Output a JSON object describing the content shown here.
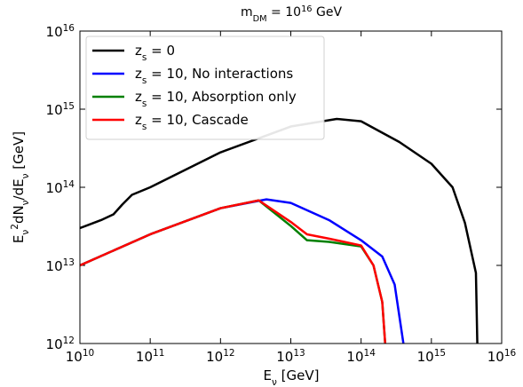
{
  "chart_data": {
    "type": "line",
    "title": "m_{DM} = 10^{16} GeV",
    "x_label": "E_{ν} [GeV]",
    "y_label": "E_{ν}^{2}dN_{ν}/dE_{ν} [GeV]",
    "xscale": "log",
    "yscale": "log",
    "xlim": [
      10000000000.0,
      1e+16
    ],
    "ylim": [
      1000000000000.0,
      1e+16
    ],
    "xticks": [
      {
        "value": 10000000000.0,
        "label": "10^{10}"
      },
      {
        "value": 100000000000.0,
        "label": "10^{11}"
      },
      {
        "value": 1000000000000.0,
        "label": "10^{12}"
      },
      {
        "value": 10000000000000.0,
        "label": "10^{13}"
      },
      {
        "value": 100000000000000.0,
        "label": "10^{14}"
      },
      {
        "value": 1000000000000000.0,
        "label": "10^{15}"
      },
      {
        "value": 1e+16,
        "label": "10^{16}"
      }
    ],
    "yticks": [
      {
        "value": 1000000000000.0,
        "label": "10^{12}"
      },
      {
        "value": 10000000000000.0,
        "label": "10^{13}"
      },
      {
        "value": 100000000000000.0,
        "label": "10^{14}"
      },
      {
        "value": 1000000000000000.0,
        "label": "10^{15}"
      },
      {
        "value": 1e+16,
        "label": "10^{16}"
      }
    ],
    "legend": "upper left",
    "series": [
      {
        "name": "z_{s} = 0",
        "color": "#000000",
        "x": [
          10000000000.0,
          20000000000.0,
          30000000000.0,
          40000000000.0,
          55000000000.0,
          100000000000.0,
          1000000000000.0,
          10000000000000.0,
          45000000000000.0,
          100000000000000.0,
          350000000000000.0,
          1000000000000000.0,
          2000000000000000.0,
          3000000000000000.0,
          4300000000000000.0,
          4500000000000000.0
        ],
        "values": [
          30000000000000.0,
          38000000000000.0,
          45000000000000.0,
          60000000000000.0,
          80000000000000.0,
          100000000000000.0,
          280000000000000.0,
          600000000000000.0,
          750000000000000.0,
          700000000000000.0,
          380000000000000.0,
          200000000000000.0,
          100000000000000.0,
          35000000000000.0,
          8000000000000.0,
          1000000000000.0
        ]
      },
      {
        "name": "z_{s} = 10, No interactions",
        "color": "#0000ff",
        "x": [
          10000000000.0,
          100000000000.0,
          1000000000000.0,
          4500000000000.0,
          10000000000000.0,
          35000000000000.0,
          100000000000000.0,
          200000000000000.0,
          300000000000000.0,
          400000000000000.0
        ],
        "values": [
          10000000000000.0,
          25000000000000.0,
          54000000000000.0,
          70000000000000.0,
          63000000000000.0,
          38000000000000.0,
          21000000000000.0,
          13000000000000.0,
          5700000000000.0,
          1000000000000.0
        ]
      },
      {
        "name": "z_{s} = 10, Absorption only",
        "color": "#008000",
        "x": [
          10000000000.0,
          100000000000.0,
          1000000000000.0,
          3500000000000.0,
          10000000000000.0,
          17000000000000.0,
          35000000000000.0,
          100000000000000.0,
          150000000000000.0,
          200000000000000.0,
          220000000000000.0
        ],
        "values": [
          10000000000000.0,
          25000000000000.0,
          54000000000000.0,
          68000000000000.0,
          32000000000000.0,
          21000000000000.0,
          20000000000000.0,
          17500000000000.0,
          10000000000000.0,
          3400000000000.0,
          1000000000000.0
        ]
      },
      {
        "name": "z_{s} = 10, Cascade",
        "color": "#ff0000",
        "x": [
          10000000000.0,
          100000000000.0,
          1000000000000.0,
          3500000000000.0,
          10000000000000.0,
          17000000000000.0,
          35000000000000.0,
          100000000000000.0,
          150000000000000.0,
          200000000000000.0,
          220000000000000.0
        ],
        "values": [
          10000000000000.0,
          25000000000000.0,
          54000000000000.0,
          68000000000000.0,
          36000000000000.0,
          25000000000000.0,
          22000000000000.0,
          18000000000000.0,
          10000000000000.0,
          3400000000000.0,
          1000000000000.0
        ]
      }
    ]
  }
}
